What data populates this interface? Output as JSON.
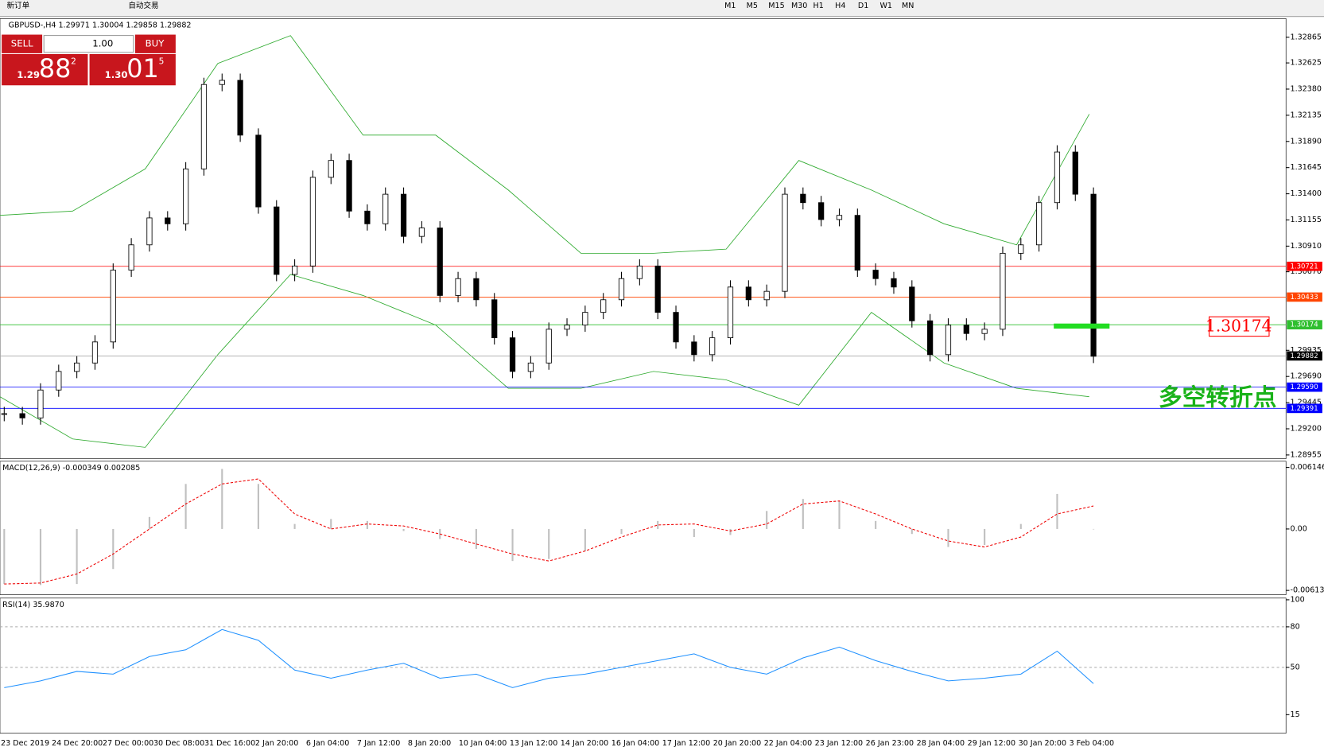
{
  "toolbar": {
    "new_order": "新订单",
    "auto_trading": "自动交易",
    "timeframes": [
      "M1",
      "M5",
      "M15",
      "M30",
      "H1",
      "H4",
      "D1",
      "W1",
      "MN"
    ]
  },
  "trade_panel": {
    "sell": "SELL",
    "buy": "BUY",
    "lots": "1.00",
    "bid": {
      "prefix": "1.29",
      "pips": "88",
      "point": "2"
    },
    "ask": {
      "prefix": "1.30",
      "pips": "01",
      "point": "5"
    }
  },
  "chart_data": {
    "type": "candlestick",
    "title": "GBPUSD-,H4  1.29971 1.30004 1.29858 1.29882",
    "x_labels": [
      "23 Dec 2019",
      "24 Dec 20:00",
      "27 Dec 00:00",
      "30 Dec 08:00",
      "31 Dec 16:00",
      "2 Jan 20:00",
      "6 Jan 04:00",
      "7 Jan 12:00",
      "8 Jan 20:00",
      "10 Jan 04:00",
      "13 Jan 12:00",
      "14 Jan 20:00",
      "16 Jan 04:00",
      "17 Jan 12:00",
      "20 Jan 20:00",
      "22 Jan 04:00",
      "23 Jan 12:00",
      "26 Jan 23:00",
      "28 Jan 04:00",
      "29 Jan 12:00",
      "30 Jan 20:00",
      "3 Feb 04:00"
    ],
    "closes": [
      1.29342,
      1.29302,
      1.29563,
      1.29737,
      1.29816,
      1.30013,
      1.30685,
      1.30922,
      1.31174,
      1.31119,
      1.31633,
      1.32423,
      1.32462,
      1.31949,
      1.31277,
      1.30645,
      1.30724,
      1.31554,
      1.31712,
      1.31238,
      1.31119,
      1.31396,
      1.31001,
      1.3108,
      1.30448,
      1.30606,
      1.30408,
      1.30052,
      1.29737,
      1.29816,
      1.30132,
      1.30171,
      1.3029,
      1.30408,
      1.30606,
      1.30724,
      1.3029,
      1.30013,
      1.29894,
      1.30052,
      1.30527,
      1.30408,
      1.30487,
      1.31396,
      1.31317,
      1.31159,
      1.31198,
      1.30685,
      1.30606,
      1.30527,
      1.30211,
      1.29894,
      1.30171,
      1.30092,
      1.30132,
      1.30843,
      1.30922,
      1.31317,
      1.31791,
      1.31396,
      1.29879
    ],
    "upper_band": [
      1.31198,
      1.31238,
      1.31633,
      1.3262,
      1.32881,
      1.31949,
      1.31949,
      1.31435,
      1.30843,
      1.30843,
      1.30882,
      1.31712,
      1.31435,
      1.31119,
      1.30922,
      1.32146
    ],
    "lower_band": [
      1.295,
      1.29105,
      1.29026,
      1.29895,
      1.30645,
      1.30448,
      1.30171,
      1.29579,
      1.29579,
      1.29737,
      1.29658,
      1.29421,
      1.3029,
      1.29816,
      1.29579,
      1.295
    ],
    "ylim": [
      1.2892,
      1.3304
    ],
    "yticks": [
      1.32865,
      1.32625,
      {
        "value": 1.3238,
        "label": "1.32380"
      },
      1.32135,
      {
        "value": 1.3189,
        "label": "1.31890"
      },
      1.31645,
      {
        "value": 1.314,
        "label": "1.31400"
      },
      1.31155,
      {
        "value": 1.3091,
        "label": "1.30910"
      },
      {
        "value": 1.3067,
        "label": "1.30670"
      },
      1.29935,
      {
        "value": 1.2969,
        "label": "1.29690"
      },
      1.29445,
      {
        "value": 1.292,
        "label": "1.29200"
      },
      1.28955
    ],
    "levels": [
      {
        "value": 1.30721,
        "color": "#ff0000"
      },
      {
        "value": 1.30433,
        "color": "#ff4500"
      },
      {
        "value": 1.30174,
        "color": "#2fbf2f"
      },
      {
        "value": 1.2959,
        "label": "1.29590",
        "color": "#0000ff"
      },
      {
        "value": 1.29391,
        "color": "#0000ff"
      },
      {
        "value": 1.29882,
        "color": "#000000"
      }
    ]
  },
  "macd": {
    "title": "MACD(12,26,9) -0.000349 0.002085",
    "ylim": [
      -0.0064,
      0.0066
    ],
    "yticks": [
      0.006146,
      {
        "value": 0,
        "label": "0.00"
      },
      -0.006138
    ],
    "histogram": [
      -0.0055,
      -0.0056,
      -0.0055,
      -0.004,
      0.0012,
      0.0045,
      0.006,
      0.0045,
      0.0005,
      0.001,
      0.0008,
      -0.0002,
      -0.001,
      -0.002,
      -0.0032,
      -0.003,
      -0.0022,
      -0.0005,
      0.0008,
      -0.0008,
      -0.0006,
      0.0018,
      0.003,
      0.0028,
      0.0008,
      -0.0005,
      -0.0018,
      -0.0016,
      0.0005,
      0.0035,
      0
    ],
    "signal": [
      -0.0055,
      -0.0054,
      -0.0045,
      -0.0025,
      0,
      0.0025,
      0.0045,
      0.005,
      0.0015,
      0,
      0.0005,
      0.0003,
      -0.0005,
      -0.0015,
      -0.0025,
      -0.0032,
      -0.0022,
      -0.0008,
      0.0004,
      0.0005,
      -0.0002,
      0.0005,
      0.0025,
      0.0028,
      0.0015,
      0,
      -0.0012,
      -0.0018,
      -0.0008,
      0.0015,
      0.0023
    ]
  },
  "rsi": {
    "title": "RSI(14) 35.9870",
    "ylim": [
      0,
      100
    ],
    "yticks": [
      100,
      80,
      50,
      15
    ],
    "levels": [
      80,
      50
    ],
    "values": [
      35,
      40,
      47,
      45,
      58,
      63,
      78,
      70,
      48,
      42,
      48,
      53,
      42,
      45,
      35,
      42,
      45,
      50,
      55,
      60,
      50,
      45,
      57,
      65,
      55,
      47,
      40,
      42,
      45,
      62,
      38
    ]
  },
  "annotations": {
    "price_label": "1.30174",
    "text": "多空转折点"
  }
}
